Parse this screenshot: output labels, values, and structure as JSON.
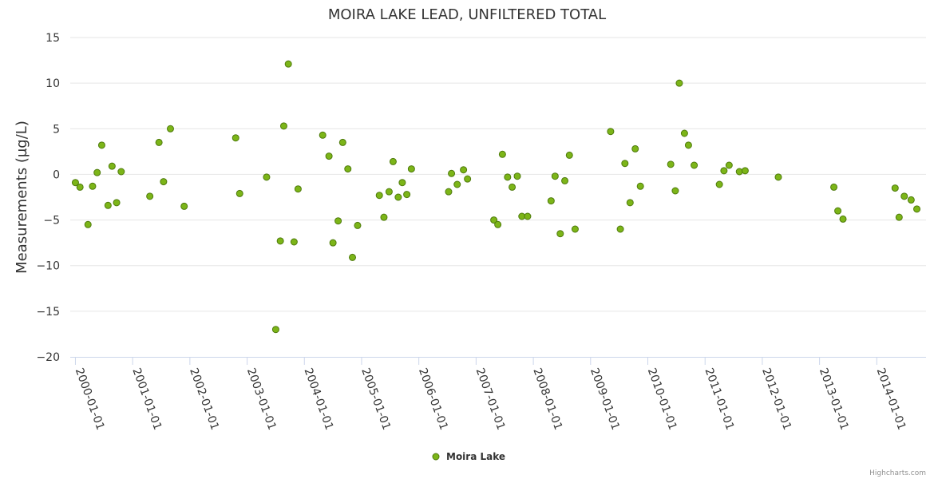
{
  "chart_data": {
    "type": "scatter",
    "title": "MOIRA LAKE LEAD, UNFILTERED TOTAL",
    "xlabel": "",
    "ylabel": "Measurements (µg/L)",
    "ylim": [
      -20,
      15
    ],
    "yticks": [
      -20,
      -15,
      -10,
      -5,
      0,
      5,
      10,
      15
    ],
    "xlim": [
      1999.91,
      2014.86
    ],
    "xticks": [
      {
        "label": "2000-01-01",
        "value": 2000.0
      },
      {
        "label": "2001-01-01",
        "value": 2001.0
      },
      {
        "label": "2002-01-01",
        "value": 2002.0
      },
      {
        "label": "2003-01-01",
        "value": 2003.0
      },
      {
        "label": "2004-01-01",
        "value": 2004.0
      },
      {
        "label": "2005-01-01",
        "value": 2005.0
      },
      {
        "label": "2006-01-01",
        "value": 2006.0
      },
      {
        "label": "2007-01-01",
        "value": 2007.0
      },
      {
        "label": "2008-01-01",
        "value": 2008.0
      },
      {
        "label": "2009-01-01",
        "value": 2009.0
      },
      {
        "label": "2010-01-01",
        "value": 2010.0
      },
      {
        "label": "2011-01-01",
        "value": 2011.0
      },
      {
        "label": "2012-01-01",
        "value": 2012.0
      },
      {
        "label": "2013-01-01",
        "value": 2013.0
      },
      {
        "label": "2014-01-01",
        "value": 2014.0
      }
    ],
    "grid": true,
    "legend_position": "bottom-center",
    "series": [
      {
        "name": "Moira Lake",
        "color": "#7cb518",
        "stroke": "#4e7a0c",
        "x": [
          2000.0,
          2000.08,
          2000.22,
          2000.3,
          2000.38,
          2000.46,
          2000.57,
          2000.64,
          2000.72,
          2000.8,
          2001.3,
          2001.46,
          2001.54,
          2001.66,
          2001.9,
          2002.8,
          2002.87,
          2003.34,
          2003.5,
          2003.58,
          2003.64,
          2003.72,
          2003.82,
          2003.89,
          2004.32,
          2004.43,
          2004.5,
          2004.59,
          2004.67,
          2004.76,
          2004.84,
          2004.93,
          2005.31,
          2005.39,
          2005.48,
          2005.55,
          2005.64,
          2005.71,
          2005.79,
          2005.87,
          2006.52,
          2006.57,
          2006.67,
          2006.78,
          2006.85,
          2007.31,
          2007.38,
          2007.46,
          2007.55,
          2007.63,
          2007.72,
          2007.8,
          2007.9,
          2008.31,
          2008.38,
          2008.47,
          2008.55,
          2008.63,
          2008.73,
          2009.35,
          2009.52,
          2009.6,
          2009.69,
          2009.78,
          2009.87,
          2010.4,
          2010.48,
          2010.55,
          2010.64,
          2010.71,
          2010.81,
          2011.25,
          2011.33,
          2011.42,
          2011.6,
          2011.7,
          2012.28,
          2013.25,
          2013.32,
          2013.41,
          2014.32,
          2014.39,
          2014.48,
          2014.6,
          2014.7
        ],
        "y": [
          -0.9,
          -1.4,
          -5.5,
          -1.3,
          0.2,
          3.2,
          -3.4,
          0.9,
          -3.1,
          0.3,
          -2.4,
          3.5,
          -0.8,
          5.0,
          -3.5,
          4.0,
          -2.1,
          -0.3,
          -17.0,
          -7.3,
          5.3,
          12.1,
          -7.4,
          -1.6,
          4.3,
          2.0,
          -7.5,
          -5.1,
          3.5,
          0.6,
          -9.1,
          -5.6,
          -2.3,
          -4.7,
          -1.9,
          1.4,
          -2.5,
          -0.9,
          -2.2,
          0.6,
          -1.9,
          0.1,
          -1.1,
          0.5,
          -0.5,
          -5.0,
          -5.5,
          2.2,
          -0.3,
          -1.4,
          -0.2,
          -4.6,
          -4.6,
          -2.9,
          -0.2,
          -6.5,
          -0.7,
          2.1,
          -6.0,
          4.7,
          -6.0,
          1.2,
          -3.1,
          2.8,
          -1.3,
          1.1,
          -1.8,
          10.0,
          4.5,
          3.2,
          1.0,
          -1.1,
          0.4,
          1.0,
          0.3,
          0.4,
          -0.3,
          -1.4,
          -4.0,
          -4.9,
          -1.5,
          -4.7,
          -2.4,
          -2.8,
          -3.8
        ]
      }
    ]
  },
  "credit": "Highcharts.com"
}
